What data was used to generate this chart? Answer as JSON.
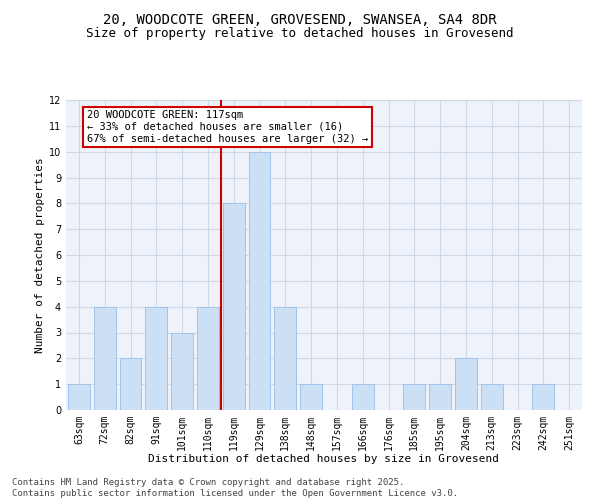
{
  "title_line1": "20, WOODCOTE GREEN, GROVESEND, SWANSEA, SA4 8DR",
  "title_line2": "Size of property relative to detached houses in Grovesend",
  "xlabel": "Distribution of detached houses by size in Grovesend",
  "ylabel": "Number of detached properties",
  "categories": [
    "63sqm",
    "72sqm",
    "82sqm",
    "91sqm",
    "101sqm",
    "110sqm",
    "119sqm",
    "129sqm",
    "138sqm",
    "148sqm",
    "157sqm",
    "166sqm",
    "176sqm",
    "185sqm",
    "195sqm",
    "204sqm",
    "213sqm",
    "223sqm",
    "242sqm",
    "251sqm"
  ],
  "values": [
    1,
    4,
    2,
    4,
    3,
    4,
    8,
    10,
    4,
    1,
    0,
    1,
    0,
    1,
    1,
    2,
    1,
    0,
    1,
    0
  ],
  "bar_color": "#cce0f5",
  "bar_edge_color": "#a0c4e8",
  "vline_color": "#cc0000",
  "vline_x": 5.5,
  "annotation_text": "20 WOODCOTE GREEN: 117sqm\n← 33% of detached houses are smaller (16)\n67% of semi-detached houses are larger (32) →",
  "annotation_box_color": "#cc0000",
  "ylim": [
    0,
    12
  ],
  "yticks": [
    0,
    1,
    2,
    3,
    4,
    5,
    6,
    7,
    8,
    9,
    10,
    11,
    12
  ],
  "grid_color": "#d0d8e8",
  "background_color": "#eef2fa",
  "footer_line1": "Contains HM Land Registry data © Crown copyright and database right 2025.",
  "footer_line2": "Contains public sector information licensed under the Open Government Licence v3.0.",
  "title_fontsize": 10,
  "subtitle_fontsize": 9,
  "axis_label_fontsize": 8,
  "tick_fontsize": 7,
  "annotation_fontsize": 7.5,
  "footer_fontsize": 6.5
}
